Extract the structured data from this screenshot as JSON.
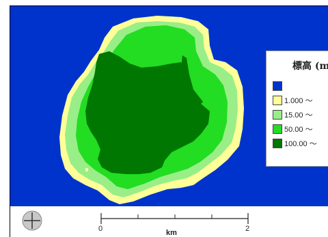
{
  "legend": {
    "title": "標高 (m",
    "items": [
      {
        "label": "",
        "color": "#0033cc"
      },
      {
        "label": "1.000 〜",
        "color": "#ffff99"
      },
      {
        "label": "15.00 〜",
        "color": "#99ee88"
      },
      {
        "label": "50.00 〜",
        "color": "#22dd22"
      },
      {
        "label": "100.00 〜",
        "color": "#007700"
      }
    ]
  },
  "scale": {
    "start_label": "0",
    "end_label": "2",
    "unit_label": "km"
  },
  "colors": {
    "sea": "#0033cc",
    "coast": "#ffff99",
    "low": "#99ee88",
    "mid": "#22dd22",
    "high": "#007700"
  },
  "compass": {
    "icon": "compass-icon"
  }
}
